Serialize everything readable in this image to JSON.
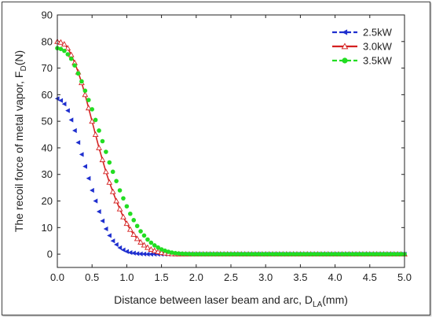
{
  "chart_data": {
    "type": "line",
    "title": "",
    "xlabel": {
      "main": "Distance between laser beam and arc, D",
      "sub": "LA",
      "unit": "(mm)"
    },
    "ylabel": {
      "main": "The recoil force of metal vapor, F",
      "sub": "D",
      "unit": "(N)"
    },
    "xlim": [
      0.0,
      5.0
    ],
    "ylim": [
      -5,
      90
    ],
    "xticks": [
      "0.0",
      "0.5",
      "1.0",
      "1.5",
      "2.0",
      "2.5",
      "3.0",
      "3.5",
      "4.0",
      "4.5",
      "5.0"
    ],
    "yticks": [
      "0",
      "10",
      "20",
      "30",
      "40",
      "50",
      "60",
      "70",
      "80",
      "90"
    ],
    "grid": false,
    "legend_position": "top-right",
    "series": [
      {
        "name": "2.5kW",
        "color": "#1f2fcf",
        "marker": "triangle-left",
        "line": "dashed",
        "points": [
          [
            0.0,
            58.5
          ],
          [
            0.05,
            57.8
          ],
          [
            0.1,
            56.5
          ],
          [
            0.15,
            54.0
          ],
          [
            0.2,
            50.5
          ],
          [
            0.25,
            46.5
          ],
          [
            0.3,
            42.0
          ],
          [
            0.35,
            37.5
          ],
          [
            0.4,
            33.0
          ],
          [
            0.45,
            28.5
          ],
          [
            0.5,
            24.0
          ],
          [
            0.55,
            20.0
          ],
          [
            0.6,
            16.0
          ],
          [
            0.65,
            12.5
          ],
          [
            0.7,
            9.5
          ],
          [
            0.75,
            7.0
          ],
          [
            0.8,
            5.0
          ],
          [
            0.85,
            3.6
          ],
          [
            0.9,
            2.4
          ],
          [
            0.95,
            1.6
          ],
          [
            1.0,
            1.0
          ],
          [
            1.05,
            0.6
          ],
          [
            1.1,
            0.4
          ],
          [
            1.15,
            0.2
          ],
          [
            1.2,
            0.1
          ],
          [
            1.25,
            0.05
          ],
          [
            1.3,
            0
          ],
          [
            1.35,
            0
          ],
          [
            1.4,
            0
          ],
          [
            1.45,
            0
          ],
          [
            1.5,
            0
          ],
          [
            1.55,
            0
          ],
          [
            1.6,
            0
          ],
          [
            1.65,
            0
          ],
          [
            1.7,
            0
          ],
          [
            1.75,
            0
          ],
          [
            1.8,
            0
          ],
          [
            1.85,
            0
          ],
          [
            1.9,
            0
          ],
          [
            1.95,
            0
          ],
          [
            2.0,
            0
          ],
          [
            2.05,
            0
          ],
          [
            2.1,
            0
          ],
          [
            2.15,
            0
          ],
          [
            2.2,
            0
          ],
          [
            2.25,
            0
          ],
          [
            2.3,
            0
          ],
          [
            2.35,
            0
          ],
          [
            2.4,
            0
          ],
          [
            2.45,
            0
          ],
          [
            2.5,
            0
          ],
          [
            2.55,
            0
          ],
          [
            2.6,
            0
          ],
          [
            2.65,
            0
          ],
          [
            2.7,
            0
          ],
          [
            2.75,
            0
          ],
          [
            2.8,
            0
          ],
          [
            2.85,
            0
          ],
          [
            2.9,
            0
          ],
          [
            2.95,
            0
          ],
          [
            3.0,
            0
          ],
          [
            3.05,
            0
          ],
          [
            3.1,
            0
          ],
          [
            3.15,
            0
          ],
          [
            3.2,
            0
          ],
          [
            3.25,
            0
          ],
          [
            3.3,
            0
          ],
          [
            3.35,
            0
          ],
          [
            3.4,
            0
          ],
          [
            3.45,
            0
          ],
          [
            3.5,
            0
          ],
          [
            3.55,
            0
          ],
          [
            3.6,
            0
          ],
          [
            3.65,
            0
          ],
          [
            3.7,
            0
          ],
          [
            3.75,
            0
          ],
          [
            3.8,
            0
          ],
          [
            3.85,
            0
          ],
          [
            3.9,
            0
          ],
          [
            3.95,
            0
          ],
          [
            4.0,
            0
          ],
          [
            4.05,
            0
          ],
          [
            4.1,
            0
          ],
          [
            4.15,
            0
          ],
          [
            4.2,
            0
          ],
          [
            4.25,
            0
          ],
          [
            4.3,
            0
          ],
          [
            4.35,
            0
          ],
          [
            4.4,
            0
          ],
          [
            4.45,
            0
          ],
          [
            4.5,
            0
          ],
          [
            4.55,
            0
          ],
          [
            4.6,
            0
          ],
          [
            4.65,
            0
          ],
          [
            4.7,
            0
          ],
          [
            4.75,
            0
          ],
          [
            4.8,
            0
          ],
          [
            4.85,
            0
          ],
          [
            4.9,
            0
          ],
          [
            4.95,
            0
          ],
          [
            5.0,
            0
          ]
        ]
      },
      {
        "name": "3.0kW",
        "color": "#d42020",
        "marker": "triangle-open",
        "line": "solid",
        "points": [
          [
            0.0,
            80.0
          ],
          [
            0.05,
            79.7
          ],
          [
            0.1,
            79.0
          ],
          [
            0.15,
            77.5
          ],
          [
            0.2,
            75.0
          ],
          [
            0.25,
            72.0
          ],
          [
            0.3,
            68.5
          ],
          [
            0.35,
            64.5
          ],
          [
            0.4,
            60.0
          ],
          [
            0.45,
            55.0
          ],
          [
            0.5,
            50.0
          ],
          [
            0.55,
            45.0
          ],
          [
            0.6,
            40.0
          ],
          [
            0.65,
            35.5
          ],
          [
            0.7,
            31.0
          ],
          [
            0.75,
            27.0
          ],
          [
            0.8,
            23.5
          ],
          [
            0.85,
            20.0
          ],
          [
            0.9,
            17.0
          ],
          [
            0.95,
            14.0
          ],
          [
            1.0,
            11.5
          ],
          [
            1.05,
            9.3
          ],
          [
            1.1,
            7.4
          ],
          [
            1.15,
            5.8
          ],
          [
            1.2,
            4.5
          ],
          [
            1.25,
            3.4
          ],
          [
            1.3,
            2.5
          ],
          [
            1.35,
            1.8
          ],
          [
            1.4,
            1.3
          ],
          [
            1.45,
            0.9
          ],
          [
            1.5,
            0.6
          ],
          [
            1.55,
            0.4
          ],
          [
            1.6,
            0.25
          ],
          [
            1.65,
            0.15
          ],
          [
            1.7,
            0.1
          ],
          [
            1.75,
            0.05
          ],
          [
            1.8,
            0
          ],
          [
            1.85,
            0
          ],
          [
            1.9,
            0
          ],
          [
            1.95,
            0
          ],
          [
            2.0,
            0
          ],
          [
            2.05,
            0
          ],
          [
            2.1,
            0
          ],
          [
            2.15,
            0
          ],
          [
            2.2,
            0
          ],
          [
            2.25,
            0
          ],
          [
            2.3,
            0
          ],
          [
            2.35,
            0
          ],
          [
            2.4,
            0
          ],
          [
            2.45,
            0
          ],
          [
            2.5,
            0
          ],
          [
            2.55,
            0
          ],
          [
            2.6,
            0
          ],
          [
            2.65,
            0
          ],
          [
            2.7,
            0
          ],
          [
            2.75,
            0
          ],
          [
            2.8,
            0
          ],
          [
            2.85,
            0
          ],
          [
            2.9,
            0
          ],
          [
            2.95,
            0
          ],
          [
            3.0,
            0
          ],
          [
            3.05,
            0
          ],
          [
            3.1,
            0
          ],
          [
            3.15,
            0
          ],
          [
            3.2,
            0
          ],
          [
            3.25,
            0
          ],
          [
            3.3,
            0
          ],
          [
            3.35,
            0
          ],
          [
            3.4,
            0
          ],
          [
            3.45,
            0
          ],
          [
            3.5,
            0
          ],
          [
            3.55,
            0
          ],
          [
            3.6,
            0
          ],
          [
            3.65,
            0
          ],
          [
            3.7,
            0
          ],
          [
            3.75,
            0
          ],
          [
            3.8,
            0
          ],
          [
            3.85,
            0
          ],
          [
            3.9,
            0
          ],
          [
            3.95,
            0
          ],
          [
            4.0,
            0
          ],
          [
            4.05,
            0
          ],
          [
            4.1,
            0
          ],
          [
            4.15,
            0
          ],
          [
            4.2,
            0
          ],
          [
            4.25,
            0
          ],
          [
            4.3,
            0
          ],
          [
            4.35,
            0
          ],
          [
            4.4,
            0
          ],
          [
            4.45,
            0
          ],
          [
            4.5,
            0
          ],
          [
            4.55,
            0
          ],
          [
            4.6,
            0
          ],
          [
            4.65,
            0
          ],
          [
            4.7,
            0
          ],
          [
            4.75,
            0
          ],
          [
            4.8,
            0
          ],
          [
            4.85,
            0
          ],
          [
            4.9,
            0
          ],
          [
            4.95,
            0
          ],
          [
            5.0,
            0
          ]
        ]
      },
      {
        "name": "3.5kW",
        "color": "#22dd22",
        "marker": "circle",
        "line": "dashed",
        "points": [
          [
            0.0,
            77.5
          ],
          [
            0.05,
            77.2
          ],
          [
            0.1,
            76.5
          ],
          [
            0.15,
            75.2
          ],
          [
            0.2,
            73.5
          ],
          [
            0.25,
            71.0
          ],
          [
            0.3,
            68.0
          ],
          [
            0.35,
            65.0
          ],
          [
            0.4,
            61.5
          ],
          [
            0.45,
            58.0
          ],
          [
            0.5,
            54.5
          ],
          [
            0.55,
            50.5
          ],
          [
            0.6,
            46.5
          ],
          [
            0.65,
            42.5
          ],
          [
            0.7,
            38.5
          ],
          [
            0.75,
            34.5
          ],
          [
            0.8,
            31.0
          ],
          [
            0.85,
            27.5
          ],
          [
            0.9,
            24.0
          ],
          [
            0.95,
            21.0
          ],
          [
            1.0,
            18.0
          ],
          [
            1.05,
            15.2
          ],
          [
            1.1,
            12.8
          ],
          [
            1.15,
            10.6
          ],
          [
            1.2,
            8.6
          ],
          [
            1.25,
            7.0
          ],
          [
            1.3,
            5.5
          ],
          [
            1.35,
            4.3
          ],
          [
            1.4,
            3.3
          ],
          [
            1.45,
            2.5
          ],
          [
            1.5,
            1.8
          ],
          [
            1.55,
            1.3
          ],
          [
            1.6,
            0.9
          ],
          [
            1.65,
            0.6
          ],
          [
            1.7,
            0.4
          ],
          [
            1.75,
            0.25
          ],
          [
            1.8,
            0.15
          ],
          [
            1.85,
            0.1
          ],
          [
            1.9,
            0.05
          ],
          [
            1.95,
            0
          ],
          [
            2.0,
            0
          ],
          [
            2.05,
            0
          ],
          [
            2.1,
            0
          ],
          [
            2.15,
            0
          ],
          [
            2.2,
            0
          ],
          [
            2.25,
            0
          ],
          [
            2.3,
            0
          ],
          [
            2.35,
            0
          ],
          [
            2.4,
            0
          ],
          [
            2.45,
            0
          ],
          [
            2.5,
            0
          ],
          [
            2.55,
            0
          ],
          [
            2.6,
            0
          ],
          [
            2.65,
            0
          ],
          [
            2.7,
            0
          ],
          [
            2.75,
            0
          ],
          [
            2.8,
            0
          ],
          [
            2.85,
            0
          ],
          [
            2.9,
            0
          ],
          [
            2.95,
            0
          ],
          [
            3.0,
            0
          ],
          [
            3.05,
            0
          ],
          [
            3.1,
            0
          ],
          [
            3.15,
            0
          ],
          [
            3.2,
            0
          ],
          [
            3.25,
            0
          ],
          [
            3.3,
            0
          ],
          [
            3.35,
            0
          ],
          [
            3.4,
            0
          ],
          [
            3.45,
            0
          ],
          [
            3.5,
            0
          ],
          [
            3.55,
            0
          ],
          [
            3.6,
            0
          ],
          [
            3.65,
            0
          ],
          [
            3.7,
            0
          ],
          [
            3.75,
            0
          ],
          [
            3.8,
            0
          ],
          [
            3.85,
            0
          ],
          [
            3.9,
            0
          ],
          [
            3.95,
            0
          ],
          [
            4.0,
            0
          ],
          [
            4.05,
            0
          ],
          [
            4.1,
            0
          ],
          [
            4.15,
            0
          ],
          [
            4.2,
            0
          ],
          [
            4.25,
            0
          ],
          [
            4.3,
            0
          ],
          [
            4.35,
            0
          ],
          [
            4.4,
            0
          ],
          [
            4.45,
            0
          ],
          [
            4.5,
            0
          ],
          [
            4.55,
            0
          ],
          [
            4.6,
            0
          ],
          [
            4.65,
            0
          ],
          [
            4.7,
            0
          ],
          [
            4.75,
            0
          ],
          [
            4.8,
            0
          ],
          [
            4.85,
            0
          ],
          [
            4.9,
            0
          ],
          [
            4.95,
            0
          ],
          [
            5.0,
            0
          ]
        ]
      }
    ]
  }
}
